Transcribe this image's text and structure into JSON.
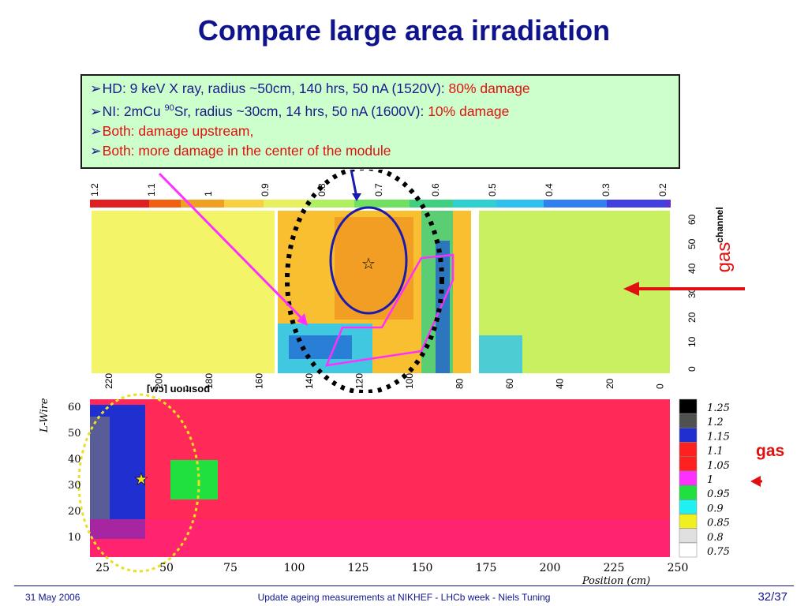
{
  "slide": {
    "title": "Compare large area irradiation",
    "bullets": [
      {
        "prefix": "HD: 9 keV X ray,  radius ~50cm, 140 hrs, 50 nA (1520V): ",
        "highlight": "80% damage"
      },
      {
        "prefix_a": "NI:   2mCu ",
        "sup": "90",
        "prefix_b": "Sr,   radius ~30cm, 14   hrs, 50 nA (1600V): ",
        "highlight": "10% damage"
      },
      {
        "text": "Both: damage upstream,"
      },
      {
        "text": "Both: more damage in the center of the module"
      }
    ],
    "arrow_glyph": "➢",
    "gas_label_top": "gas",
    "gas_label_bottom": "gas",
    "footer": {
      "date": "31 May 2006",
      "center": "Update ageing measurements at NIKHEF - LHCb week - Niels Tuning",
      "page": "32/37"
    }
  },
  "top_plot": {
    "scale_labels": [
      "1.2",
      "1.1",
      "1",
      "0.9",
      "0.8",
      "0.7",
      "0.6",
      "0.5",
      "0.4",
      "0.3",
      "0.2"
    ],
    "x_ticks": [
      "220",
      "200",
      "180",
      "160",
      "140",
      "120",
      "100",
      "80",
      "60",
      "40",
      "20",
      "0"
    ],
    "x_label": "[wɔ] uoᴉʇᴉsod",
    "y_ticks": [
      "60",
      "50",
      "40",
      "30",
      "20",
      "10",
      "0"
    ],
    "y_label": "channel",
    "marker_star": "☆"
  },
  "bottom_plot": {
    "y_label": "L-Wire",
    "y_ticks": [
      "60",
      "50",
      "40",
      "30",
      "20",
      "10"
    ],
    "x_ticks": [
      "25",
      "50",
      "75",
      "100",
      "125",
      "150",
      "175",
      "200",
      "225",
      "250"
    ],
    "x_label": "Position (cm)",
    "legend": [
      "1.25",
      "1.2",
      "1.15",
      "1.1",
      "1.05",
      "1",
      "0.95",
      "0.9",
      "0.85",
      "0.8",
      "0.75"
    ],
    "marker_star": "★"
  },
  "colors": {
    "title": "#10148c",
    "box_bg": "#ccffcc",
    "highlight": "#e01010",
    "ellipse_blue": "#1a1ab0",
    "pink_arrow": "#ff30ff"
  }
}
